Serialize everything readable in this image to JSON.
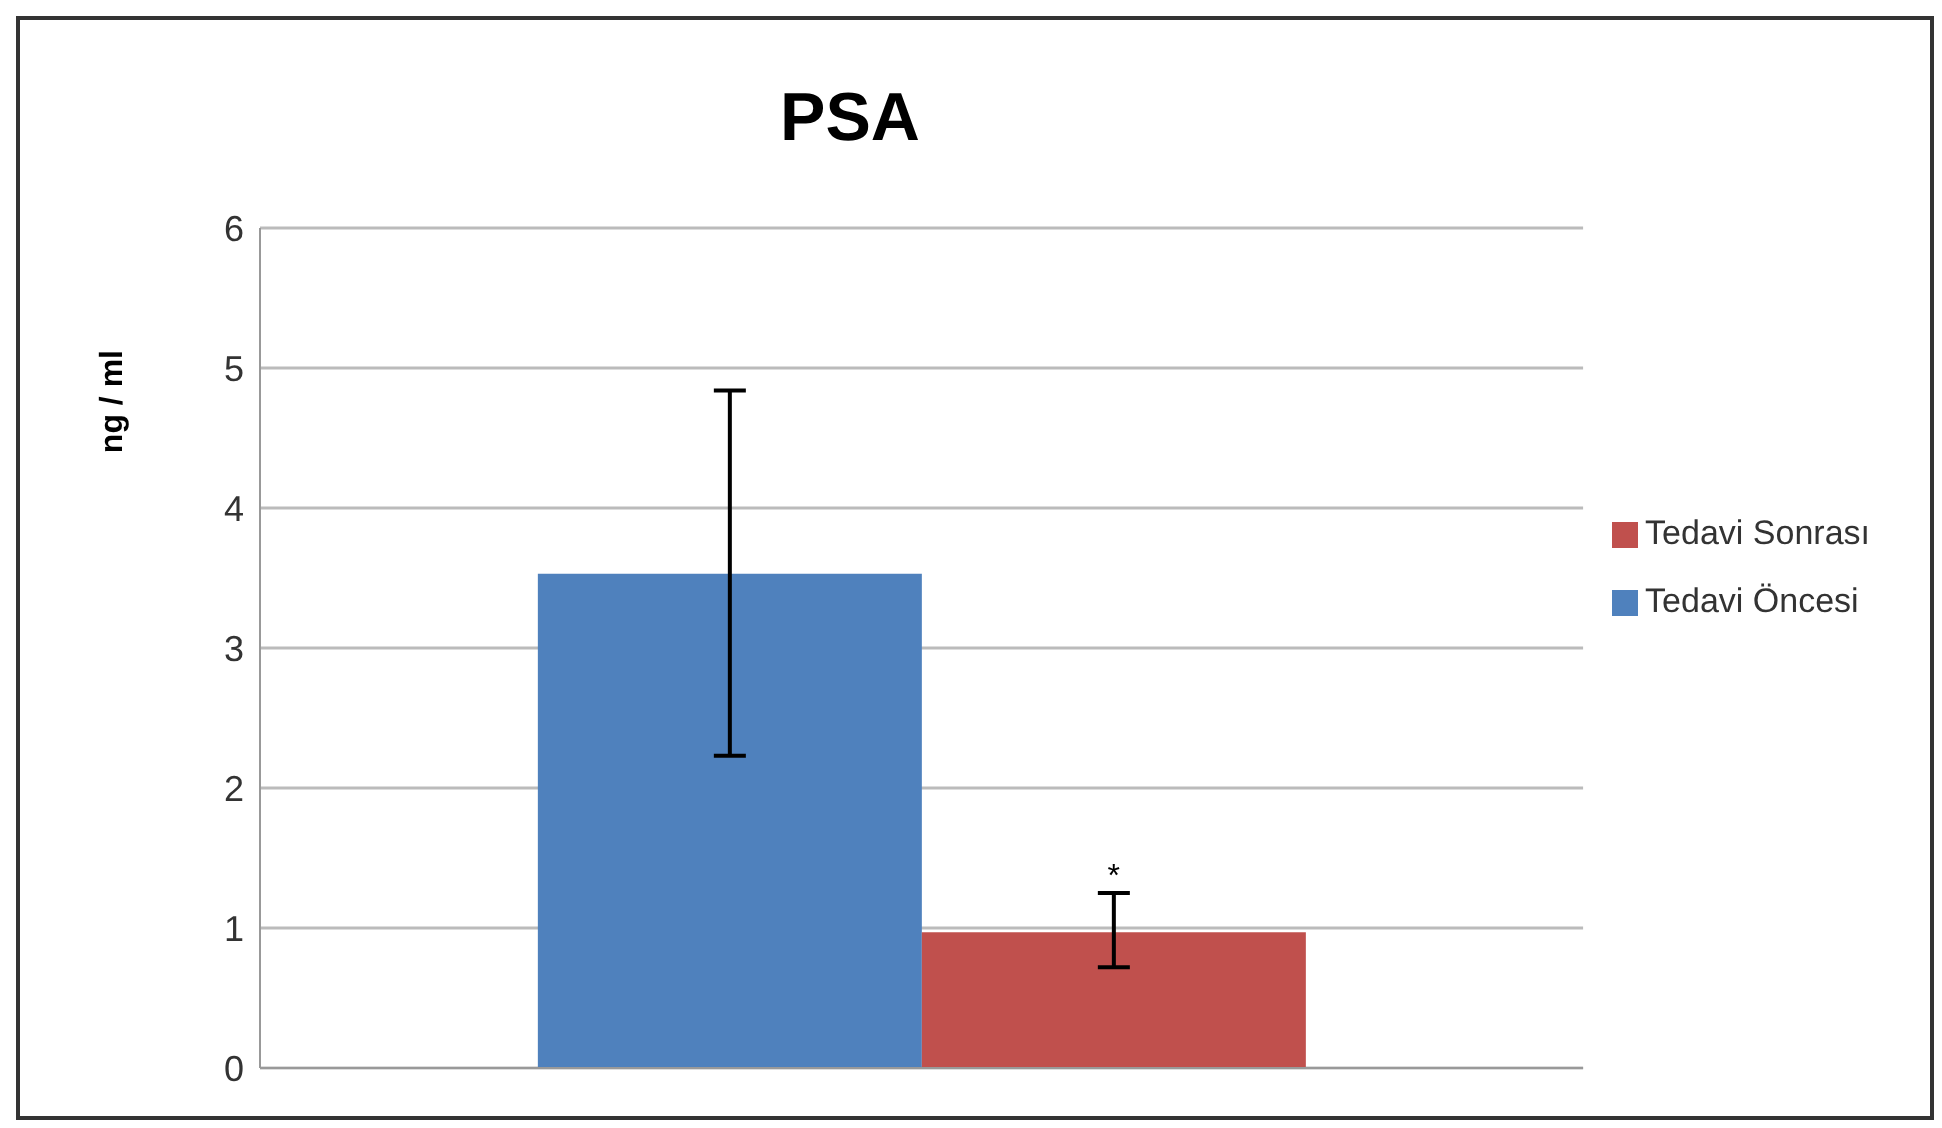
{
  "chart_data": {
    "type": "bar",
    "title": "PSA",
    "ylabel": "ng / ml",
    "categories": [
      null
    ],
    "series": [
      {
        "name": "Tedavi Öncesi",
        "color": "#4f81bd",
        "values": [
          3.53
        ],
        "errors": [
          [
            2.23,
            4.84
          ]
        ]
      },
      {
        "name": "Tedavi Sonrası",
        "color": "#c0504d",
        "values": [
          0.97
        ],
        "errors": [
          [
            0.72,
            1.25
          ]
        ]
      }
    ],
    "ylim": [
      0,
      6
    ],
    "yticks": [
      0,
      1,
      2,
      3,
      4,
      5,
      6
    ],
    "grid": "y",
    "legend": "right",
    "annotations": [
      {
        "text": "*",
        "y": 1.3
      }
    ]
  }
}
